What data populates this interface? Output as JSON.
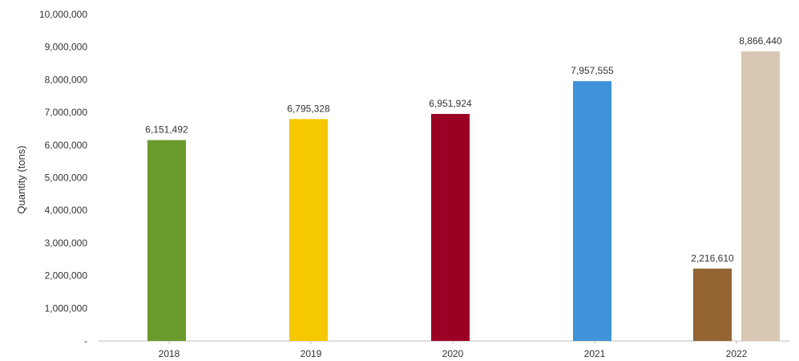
{
  "chart_data": {
    "type": "bar",
    "title": "",
    "xlabel": "",
    "ylabel": "Quantity (tons)",
    "ylim": [
      0,
      10000000
    ],
    "y_ticks": [
      {
        "value": 0,
        "label": "-"
      },
      {
        "value": 1000000,
        "label": "1,000,000"
      },
      {
        "value": 2000000,
        "label": "2,000,000"
      },
      {
        "value": 3000000,
        "label": "3,000,000"
      },
      {
        "value": 4000000,
        "label": "4,000,000"
      },
      {
        "value": 5000000,
        "label": "5,000,000"
      },
      {
        "value": 6000000,
        "label": "6,000,000"
      },
      {
        "value": 7000000,
        "label": "7,000,000"
      },
      {
        "value": 8000000,
        "label": "8,000,000"
      },
      {
        "value": 9000000,
        "label": "9,000,000"
      },
      {
        "value": 10000000,
        "label": "10,000,000"
      }
    ],
    "grid": false,
    "legend": "none",
    "categories": [
      "2018",
      "2019",
      "2020",
      "2021",
      "2022"
    ],
    "bars": [
      {
        "category": "2018",
        "value": 6151492,
        "label": "6,151,492",
        "color": "#6a9a2b"
      },
      {
        "category": "2019",
        "value": 6795328,
        "label": "6,795,328",
        "color": "#f5c800"
      },
      {
        "category": "2020",
        "value": 6951924,
        "label": "6,951,924",
        "color": "#9b0024"
      },
      {
        "category": "2021",
        "value": 7957555,
        "label": "7,957,555",
        "color": "#3f93d8"
      },
      {
        "category": "2022",
        "value": 2216610,
        "label": "2,216,610",
        "color": "#946533"
      },
      {
        "category": "2022",
        "value": 8866440,
        "label": "8,866,440",
        "color": "#d8c7b2"
      }
    ],
    "colors": {
      "axis": "#bfbfbf",
      "text": "#333333"
    }
  }
}
